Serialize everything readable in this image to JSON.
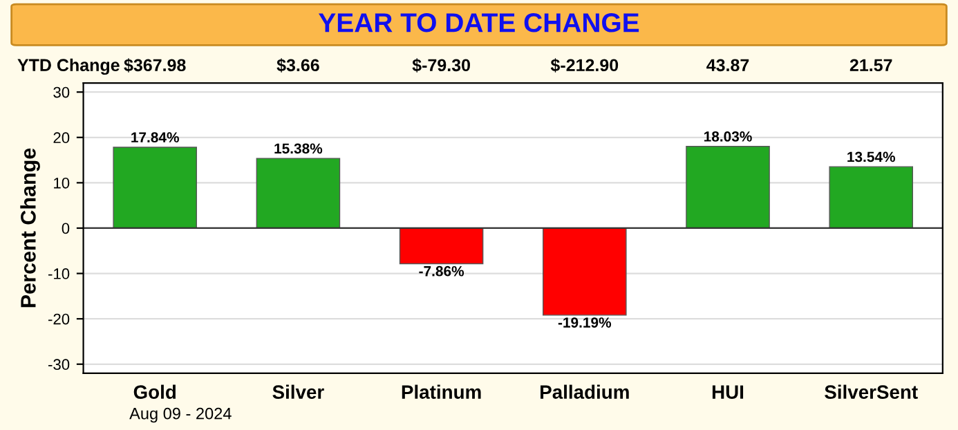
{
  "chart_data": {
    "type": "bar",
    "title": "YEAR TO DATE CHANGE",
    "ylabel": "Percent Change",
    "categories": [
      "Gold",
      "Silver",
      "Platinum",
      "Palladium",
      "HUI",
      "SilverSent"
    ],
    "values": [
      17.84,
      15.38,
      -7.86,
      -19.19,
      18.03,
      13.54
    ],
    "colors": [
      "#22a822",
      "#22a822",
      "#ff0000",
      "#ff0000",
      "#22a822",
      "#22a822"
    ],
    "value_labels": [
      "17.84%",
      "15.38%",
      "-7.86%",
      "-19.19%",
      "18.03%",
      "13.54%"
    ],
    "ylim": [
      -32,
      32
    ],
    "yticks": [
      -30,
      -20,
      -10,
      0,
      10,
      20,
      30
    ],
    "grid": "y",
    "annotations": [
      "YTD Change",
      "$367.98",
      "$3.66",
      "$-79.30",
      "$-212.90",
      "43.87",
      "21.57",
      "Aug 09 - 2024"
    ]
  }
}
